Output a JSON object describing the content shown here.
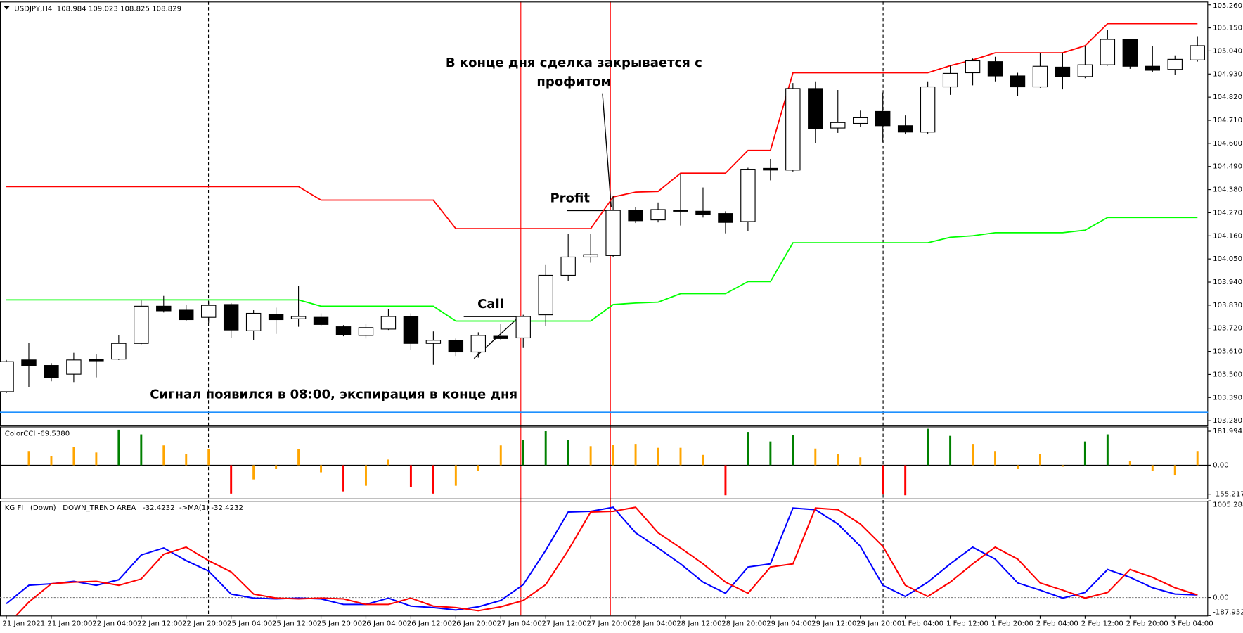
{
  "chart_data": [
    {
      "type": "candlestick",
      "title": "USDJPY,H4  108.984 109.023 108.825 108.829",
      "categories": [
        "21 Jan 2021",
        null,
        "21 Jan 20:00",
        null,
        "22 Jan 04:00",
        null,
        "22 Jan 12:00",
        null,
        "22 Jan 20:00",
        null,
        "25 Jan 04:00",
        null,
        "25 Jan 12:00",
        null,
        "25 Jan 20:00",
        null,
        "26 Jan 04:00",
        null,
        "26 Jan 12:00",
        null,
        "26 Jan 20:00",
        null,
        "27 Jan 04:00",
        null,
        "27 Jan 12:00",
        null,
        "27 Jan 20:00",
        null,
        "28 Jan 04:00",
        null,
        "28 Jan 12:00",
        null,
        "28 Jan 20:00",
        null,
        "29 Jan 04:00",
        null,
        "29 Jan 12:00",
        null,
        "29 Jan 20:00",
        null,
        "1 Feb 04:00",
        null,
        "1 Feb 12:00",
        null,
        "1 Feb 20:00",
        null,
        "2 Feb 04:00",
        null,
        "2 Feb 12:00",
        null,
        "2 Feb 20:00",
        null,
        "3 Feb 04:00",
        null
      ],
      "open": [
        103.418,
        103.569,
        103.543,
        103.501,
        103.573,
        103.573,
        103.648,
        103.825,
        103.806,
        103.772,
        103.833,
        103.708,
        103.787,
        103.765,
        103.772,
        103.727,
        103.686,
        103.716,
        103.776,
        103.648,
        103.663,
        103.607,
        103.682,
        103.674,
        103.784,
        103.972,
        104.059,
        104.066,
        104.281,
        104.236,
        104.281,
        104.277,
        104.266,
        104.228,
        104.481,
        104.473,
        104.861,
        104.673,
        104.695,
        104.752,
        104.684,
        104.654,
        104.869,
        104.936,
        104.989,
        104.921,
        104.869,
        104.963,
        104.918,
        104.974,
        105.095,
        104.967,
        104.952,
        104.997
      ],
      "high": [
        103.569,
        103.652,
        103.554,
        103.603,
        103.595,
        103.686,
        103.852,
        103.874,
        103.833,
        103.848,
        103.84,
        103.806,
        103.818,
        103.923,
        103.791,
        103.735,
        103.742,
        103.81,
        103.791,
        103.705,
        103.671,
        103.701,
        103.742,
        103.784,
        104.021,
        104.168,
        104.168,
        104.349,
        104.296,
        104.319,
        104.454,
        104.39,
        104.277,
        104.484,
        104.526,
        104.887,
        104.895,
        104.854,
        104.756,
        104.842,
        104.733,
        104.895,
        104.97,
        105.004,
        105.012,
        104.936,
        105.031,
        105.031,
        105.065,
        105.14,
        105.098,
        105.065,
        105.019,
        105.11
      ],
      "low": [
        103.411,
        103.441,
        103.467,
        103.464,
        103.486,
        103.569,
        103.644,
        103.795,
        103.754,
        103.746,
        103.674,
        103.663,
        103.693,
        103.727,
        103.731,
        103.682,
        103.671,
        103.712,
        103.618,
        103.546,
        103.588,
        103.58,
        103.663,
        103.626,
        103.731,
        103.946,
        104.032,
        104.059,
        104.221,
        104.224,
        104.209,
        104.247,
        104.172,
        104.183,
        104.424,
        104.466,
        104.601,
        104.65,
        104.68,
        104.605,
        104.643,
        104.643,
        104.831,
        104.876,
        104.895,
        104.827,
        104.865,
        104.857,
        104.91,
        104.97,
        104.955,
        104.94,
        104.925,
        104.989
      ],
      "close": [
        103.561,
        103.543,
        103.486,
        103.569,
        103.565,
        103.648,
        103.825,
        103.803,
        103.761,
        103.829,
        103.712,
        103.791,
        103.761,
        103.776,
        103.738,
        103.69,
        103.723,
        103.776,
        103.648,
        103.663,
        103.607,
        103.686,
        103.671,
        103.776,
        103.972,
        104.059,
        104.07,
        104.281,
        104.232,
        104.285,
        104.277,
        104.262,
        104.224,
        104.477,
        104.473,
        104.861,
        104.669,
        104.699,
        104.722,
        104.684,
        104.654,
        104.869,
        104.933,
        104.993,
        104.921,
        104.869,
        104.967,
        104.918,
        104.974,
        105.095,
        104.967,
        104.948,
        105.0,
        105.065
      ],
      "up_color": "#ffffff",
      "down_color": "#000000",
      "lines": [
        {
          "color": "#ff0000",
          "values": [
            104.394,
            104.394,
            104.394,
            104.394,
            104.394,
            104.394,
            104.394,
            104.394,
            104.394,
            104.394,
            104.394,
            104.394,
            104.394,
            104.394,
            104.33,
            104.33,
            104.33,
            104.33,
            104.33,
            104.33,
            104.194,
            104.194,
            104.194,
            104.194,
            104.194,
            104.194,
            104.194,
            104.345,
            104.368,
            104.371,
            104.458,
            104.458,
            104.458,
            104.567,
            104.567,
            104.936,
            104.936,
            104.936,
            104.936,
            104.936,
            104.936,
            104.936,
            104.97,
            104.997,
            105.031,
            105.031,
            105.031,
            105.031,
            105.065,
            105.17,
            105.17,
            105.17,
            105.17,
            105.17
          ]
        },
        {
          "color": "#00ff00",
          "values": [
            103.855,
            103.855,
            103.855,
            103.855,
            103.855,
            103.855,
            103.855,
            103.855,
            103.855,
            103.855,
            103.855,
            103.855,
            103.855,
            103.855,
            103.825,
            103.825,
            103.825,
            103.825,
            103.825,
            103.825,
            103.754,
            103.754,
            103.754,
            103.754,
            103.754,
            103.754,
            103.754,
            103.833,
            103.84,
            103.844,
            103.885,
            103.885,
            103.885,
            103.942,
            103.942,
            104.127,
            104.127,
            104.127,
            104.127,
            104.127,
            104.127,
            104.127,
            104.153,
            104.16,
            104.175,
            104.175,
            104.175,
            104.175,
            104.187,
            104.247,
            104.247,
            104.247,
            104.247,
            104.247
          ]
        }
      ],
      "hline": {
        "value": 103.32,
        "color": "#1e90ff"
      },
      "annotations": [
        "В конце дня сделка закрывается с",
        "профитом",
        "Profit",
        "Call",
        "Сигнал появился в 08:00, экспирация в конце дня"
      ],
      "ylim": [
        103.26,
        105.275
      ],
      "yticks": [
        {
          "value": 105.26,
          "label": "105.260"
        },
        {
          "value": 105.15,
          "label": "105.150"
        },
        {
          "value": 105.04,
          "label": "105.040"
        },
        {
          "value": 104.93,
          "label": "104.930"
        },
        {
          "value": 104.82,
          "label": "104.820"
        },
        {
          "value": 104.71,
          "label": "104.710"
        },
        {
          "value": 104.6,
          "label": "104.600"
        },
        {
          "value": 104.49,
          "label": "104.490"
        },
        {
          "value": 104.38,
          "label": "104.380"
        },
        {
          "value": 104.27,
          "label": "104.270"
        },
        {
          "value": 104.16,
          "label": "104.160"
        },
        {
          "value": 104.05,
          "label": "104.050"
        },
        {
          "value": 103.94,
          "label": "103.940"
        },
        {
          "value": 103.83,
          "label": "103.830"
        },
        {
          "value": 103.72,
          "label": "103.720"
        },
        {
          "value": 103.61,
          "label": "103.610"
        },
        {
          "value": 103.5,
          "label": "103.500"
        },
        {
          "value": 103.39,
          "label": "103.390"
        },
        {
          "value": 103.28,
          "label": "103.280"
        }
      ]
    },
    {
      "type": "bar",
      "title": "ColorCCI -69.5380",
      "values": [
        null,
        76,
        47,
        97,
        68,
        190,
        165,
        106,
        59,
        85,
        -152,
        -76,
        -21,
        85,
        -38,
        -140,
        -110,
        30,
        -118,
        -152,
        -110,
        -30,
        106,
        135,
        182,
        135,
        102,
        110,
        114,
        93,
        93,
        55,
        -161,
        178,
        127,
        161,
        89,
        59,
        42,
        -157,
        -161,
        195,
        157,
        114,
        76,
        -21,
        59,
        -8,
        127,
        165,
        21,
        -30,
        -55,
        76
      ],
      "colors": [
        null,
        "#ffa500",
        "#ffa500",
        "#ffa500",
        "#ffa500",
        "#008000",
        "#008000",
        "#ffa500",
        "#ffa500",
        "#ffa500",
        "#ff0000",
        "#ffa500",
        "#ffa500",
        "#ffa500",
        "#ffa500",
        "#ff0000",
        "#ffa500",
        "#ffa500",
        "#ff0000",
        "#ff0000",
        "#ffa500",
        "#ffa500",
        "#ffa500",
        "#008000",
        "#008000",
        "#008000",
        "#ffa500",
        "#ffa500",
        "#ffa500",
        "#ffa500",
        "#ffa500",
        "#ffa500",
        "#ff0000",
        "#008000",
        "#008000",
        "#008000",
        "#ffa500",
        "#ffa500",
        "#ffa500",
        "#ff0000",
        "#ff0000",
        "#008000",
        "#008000",
        "#ffa500",
        "#ffa500",
        "#ffa500",
        "#ffa500",
        "#ffa500",
        "#008000",
        "#008000",
        "#ffa500",
        "#ffa500",
        "#ffa500",
        "#ffa500"
      ],
      "ylim": [
        -178,
        207
      ],
      "yticks": [
        181.9945,
        {
          "value": 0,
          "label": "0.00"
        },
        -155.217
      ]
    },
    {
      "type": "line",
      "title": "KG FI   (Down)   DOWN_TREND AREA   -32.4232  ->MA(1) -32.4232",
      "series": [
        {
          "color": "#0000ff",
          "values": [
            -64,
            127,
            143,
            168,
            127,
            185,
            442,
            516,
            384,
            276,
            36,
            -6,
            -14,
            -6,
            -14,
            -72,
            -72,
            -6,
            -89,
            -105,
            -130,
            -97,
            -31,
            135,
            491,
            889,
            897,
            939,
            674,
            516,
            350,
            160,
            44,
            317,
            350,
            930,
            914,
            765,
            533,
            127,
            11,
            160,
            350,
            524,
            400,
            152,
            77,
            -6,
            52,
            292,
            210,
            102,
            36,
            27
          ]
        },
        {
          "color": "#ff0000",
          "values": [
            -296,
            -47,
            143,
            160,
            168,
            127,
            193,
            450,
            524,
            384,
            267,
            36,
            -6,
            -14,
            -6,
            -14,
            -72,
            -72,
            -6,
            -89,
            -105,
            -138,
            -97,
            -31,
            135,
            491,
            889,
            897,
            939,
            674,
            516,
            350,
            160,
            44,
            317,
            350,
            930,
            914,
            765,
            533,
            127,
            11,
            160,
            350,
            524,
            400,
            152,
            77,
            -6,
            52,
            292,
            210,
            102,
            27
          ]
        }
      ],
      "ylim": [
        -187.9527,
        1005.288
      ],
      "yticks": [
        1005.288,
        {
          "value": 0,
          "label": "0.00"
        },
        -187.9527
      ]
    }
  ]
}
